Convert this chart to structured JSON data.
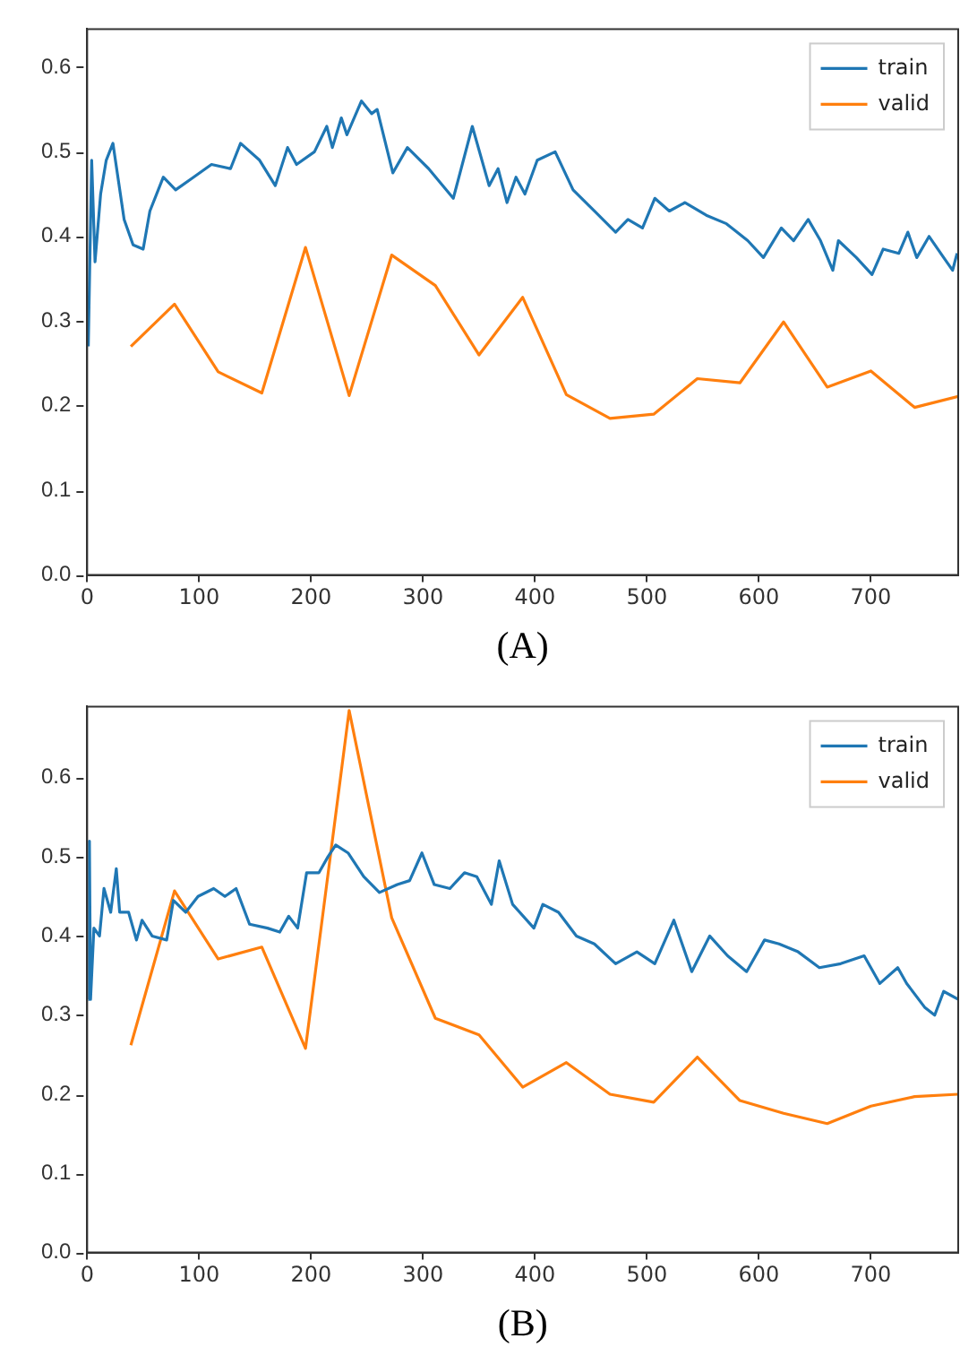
{
  "chart_data": [
    {
      "type": "line",
      "xlabel": "(A)",
      "xlim": [
        0,
        778
      ],
      "ylim": [
        0,
        0.645
      ],
      "xticks": [
        0,
        100,
        200,
        300,
        400,
        500,
        600,
        700
      ],
      "yticks": [
        {
          "value": 0,
          "label": "0.0"
        },
        {
          "value": 0.1,
          "label": "0.1"
        },
        {
          "value": 0.2,
          "label": "0.2"
        },
        {
          "value": 0.3,
          "label": "0.3"
        },
        {
          "value": 0.4,
          "label": "0.4"
        },
        {
          "value": 0.5,
          "label": "0.5"
        },
        {
          "value": 0.6,
          "label": "0.6"
        }
      ],
      "grid": false,
      "legend": "top right",
      "marker": "none",
      "line_style": "solid",
      "series": [
        {
          "name": "train",
          "color": "#1f77b4",
          "x": [
            1,
            4,
            7,
            12,
            17,
            23,
            33,
            41,
            50,
            56,
            68,
            79,
            95,
            111,
            128,
            137,
            154,
            168,
            179,
            187,
            203,
            214,
            219,
            227,
            232,
            245,
            254,
            259,
            273,
            286,
            305,
            327,
            344,
            359,
            367,
            375,
            383,
            391,
            402,
            418,
            434,
            453,
            472,
            483,
            496,
            507,
            520,
            534,
            553,
            571,
            590,
            604,
            620,
            631,
            644,
            655,
            666,
            671,
            687,
            701,
            711,
            725,
            733,
            741,
            752,
            765,
            773,
            777
          ],
          "values": [
            0.27,
            0.49,
            0.37,
            0.45,
            0.49,
            0.51,
            0.42,
            0.39,
            0.385,
            0.43,
            0.47,
            0.455,
            0.47,
            0.485,
            0.48,
            0.51,
            0.49,
            0.46,
            0.505,
            0.485,
            0.5,
            0.53,
            0.505,
            0.54,
            0.52,
            0.56,
            0.545,
            0.55,
            0.475,
            0.505,
            0.48,
            0.445,
            0.53,
            0.46,
            0.48,
            0.44,
            0.47,
            0.45,
            0.49,
            0.5,
            0.455,
            0.43,
            0.405,
            0.42,
            0.41,
            0.445,
            0.43,
            0.44,
            0.425,
            0.415,
            0.395,
            0.375,
            0.41,
            0.395,
            0.42,
            0.395,
            0.36,
            0.395,
            0.375,
            0.355,
            0.385,
            0.38,
            0.405,
            0.375,
            0.4,
            0.375,
            0.36,
            0.38
          ]
        },
        {
          "name": "valid",
          "color": "#ff7f0e",
          "x": [
            39,
            78,
            117,
            156,
            195,
            234,
            272,
            311,
            350,
            389,
            428,
            467,
            506,
            545,
            583,
            622,
            661,
            700,
            739,
            778
          ],
          "values": [
            0.27,
            0.32,
            0.24,
            0.215,
            0.387,
            0.212,
            0.378,
            0.342,
            0.26,
            0.328,
            0.213,
            0.185,
            0.19,
            0.232,
            0.227,
            0.299,
            0.222,
            0.241,
            0.198,
            0.211
          ]
        }
      ]
    },
    {
      "type": "line",
      "xlabel": "(B)",
      "xlim": [
        0,
        778
      ],
      "ylim": [
        0,
        0.69
      ],
      "xticks": [
        0,
        100,
        200,
        300,
        400,
        500,
        600,
        700
      ],
      "yticks": [
        {
          "value": 0,
          "label": "0.0"
        },
        {
          "value": 0.1,
          "label": "0.1"
        },
        {
          "value": 0.2,
          "label": "0.2"
        },
        {
          "value": 0.3,
          "label": "0.3"
        },
        {
          "value": 0.4,
          "label": "0.4"
        },
        {
          "value": 0.5,
          "label": "0.5"
        },
        {
          "value": 0.6,
          "label": "0.6"
        }
      ],
      "grid": false,
      "legend": "top right",
      "marker": "none",
      "line_style": "solid",
      "series": [
        {
          "name": "train",
          "color": "#1f77b4",
          "x": [
            1,
            2,
            3,
            6,
            11,
            15,
            21,
            26,
            29,
            37,
            44,
            49,
            58,
            71,
            77,
            88,
            99,
            113,
            123,
            133,
            145,
            161,
            172,
            180,
            188,
            196,
            207,
            215,
            222,
            233,
            247,
            261,
            277,
            288,
            299,
            310,
            324,
            337,
            348,
            361,
            368,
            380,
            399,
            407,
            421,
            437,
            453,
            472,
            491,
            507,
            524,
            540,
            556,
            572,
            589,
            605,
            618,
            635,
            654,
            673,
            694,
            708,
            724,
            732,
            748,
            757,
            765,
            778
          ],
          "values": [
            0.32,
            0.52,
            0.32,
            0.41,
            0.4,
            0.46,
            0.43,
            0.485,
            0.43,
            0.43,
            0.395,
            0.42,
            0.4,
            0.395,
            0.445,
            0.43,
            0.45,
            0.46,
            0.45,
            0.46,
            0.415,
            0.41,
            0.405,
            0.425,
            0.41,
            0.48,
            0.48,
            0.5,
            0.515,
            0.505,
            0.475,
            0.455,
            0.465,
            0.47,
            0.505,
            0.465,
            0.46,
            0.48,
            0.475,
            0.44,
            0.495,
            0.44,
            0.41,
            0.44,
            0.43,
            0.4,
            0.39,
            0.365,
            0.38,
            0.365,
            0.42,
            0.355,
            0.4,
            0.375,
            0.355,
            0.395,
            0.39,
            0.38,
            0.36,
            0.365,
            0.375,
            0.34,
            0.36,
            0.34,
            0.31,
            0.3,
            0.33,
            0.32
          ]
        },
        {
          "name": "valid",
          "color": "#ff7f0e",
          "x": [
            39,
            78,
            117,
            156,
            195,
            234,
            272,
            311,
            350,
            389,
            428,
            467,
            506,
            545,
            583,
            622,
            661,
            700,
            739,
            778
          ],
          "values": [
            0.262,
            0.457,
            0.371,
            0.386,
            0.258,
            0.685,
            0.423,
            0.296,
            0.275,
            0.209,
            0.24,
            0.2,
            0.19,
            0.247,
            0.192,
            0.176,
            0.163,
            0.185,
            0.197,
            0.2
          ]
        }
      ]
    }
  ]
}
